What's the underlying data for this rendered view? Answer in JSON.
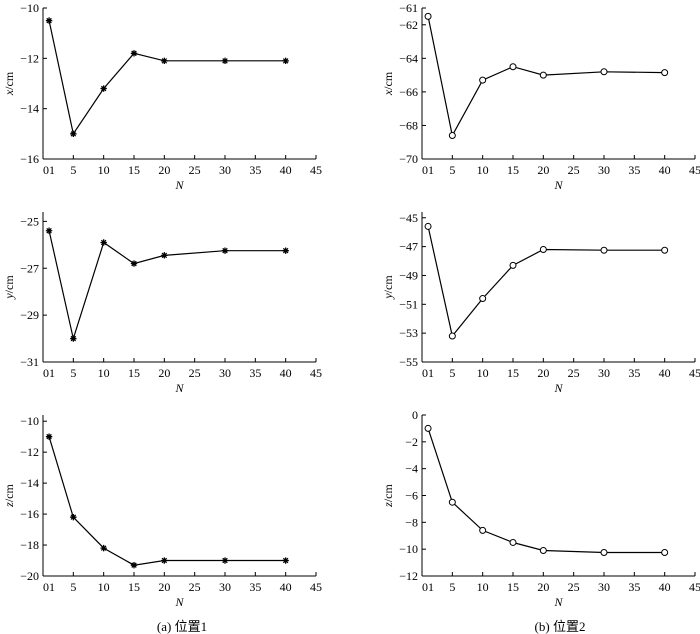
{
  "captions": {
    "left": "(a) 位置1",
    "right": "(b) 位置2"
  },
  "chart_data": [
    {
      "id": "a-x",
      "type": "line",
      "marker": "asterisk",
      "x": [
        1,
        5,
        10,
        15,
        20,
        30,
        40
      ],
      "y": [
        -10.5,
        -15.0,
        -13.2,
        -11.8,
        -12.1,
        -12.1,
        -12.1
      ],
      "ylim": [
        -16,
        -10
      ],
      "yticks": [
        -10,
        -12,
        -14,
        -16
      ],
      "xlim": [
        0,
        45
      ],
      "xticks": [
        5,
        10,
        15,
        20,
        25,
        30,
        35,
        40,
        45
      ],
      "xfirst_label": "01",
      "xlabel": "N",
      "ylabel_var": "x",
      "ylabel_unit": "/cm"
    },
    {
      "id": "b-x",
      "type": "line",
      "marker": "circle",
      "x": [
        1,
        5,
        10,
        15,
        20,
        30,
        40
      ],
      "y": [
        -61.5,
        -68.6,
        -65.3,
        -64.5,
        -65.0,
        -64.8,
        -64.85
      ],
      "ylim": [
        -70,
        -61
      ],
      "yticks": [
        -61,
        -62,
        -64,
        -66,
        -68,
        -70
      ],
      "xlim": [
        0,
        45
      ],
      "xticks": [
        5,
        10,
        15,
        20,
        25,
        30,
        35,
        40,
        45
      ],
      "xfirst_label": "01",
      "xlabel": "N",
      "ylabel_var": "x",
      "ylabel_unit": "/cm"
    },
    {
      "id": "a-y",
      "type": "line",
      "marker": "asterisk",
      "x": [
        1,
        5,
        10,
        15,
        20,
        30,
        40
      ],
      "y": [
        -25.4,
        -30.0,
        -25.9,
        -26.8,
        -26.45,
        -26.25,
        -26.25
      ],
      "ylim": [
        -31,
        -24.6
      ],
      "yticks": [
        -25,
        -27,
        -29,
        -31
      ],
      "xlim": [
        0,
        45
      ],
      "xticks": [
        5,
        10,
        15,
        20,
        25,
        30,
        35,
        40,
        45
      ],
      "xfirst_label": "01",
      "xlabel": "N",
      "ylabel_var": "y",
      "ylabel_unit": "/cm"
    },
    {
      "id": "b-y",
      "type": "line",
      "marker": "circle",
      "x": [
        1,
        5,
        10,
        15,
        20,
        30,
        40
      ],
      "y": [
        -45.6,
        -53.2,
        -50.6,
        -48.3,
        -47.2,
        -47.25,
        -47.25
      ],
      "ylim": [
        -55,
        -44.6
      ],
      "yticks": [
        -45,
        -47,
        -49,
        -51,
        -53,
        -55
      ],
      "xlim": [
        0,
        45
      ],
      "xticks": [
        5,
        10,
        15,
        20,
        25,
        30,
        35,
        40,
        45
      ],
      "xfirst_label": "01",
      "xlabel": "N",
      "ylabel_var": "y",
      "ylabel_unit": "/cm"
    },
    {
      "id": "a-z",
      "type": "line",
      "marker": "asterisk",
      "x": [
        1,
        5,
        10,
        15,
        20,
        30,
        40
      ],
      "y": [
        -11.0,
        -16.2,
        -18.2,
        -19.3,
        -19.0,
        -19.0,
        -19.0
      ],
      "ylim": [
        -20,
        -9.6
      ],
      "yticks": [
        -10,
        -12,
        -14,
        -16,
        -18,
        -20
      ],
      "xlim": [
        0,
        45
      ],
      "xticks": [
        5,
        10,
        15,
        20,
        25,
        30,
        35,
        40,
        45
      ],
      "xfirst_label": "01",
      "xlabel": "N",
      "ylabel_var": "z",
      "ylabel_unit": "/cm"
    },
    {
      "id": "b-z",
      "type": "line",
      "marker": "circle",
      "x": [
        1,
        5,
        10,
        15,
        20,
        30,
        40
      ],
      "y": [
        -1.0,
        -6.5,
        -8.6,
        -9.5,
        -10.1,
        -10.25,
        -10.25
      ],
      "ylim": [
        -12,
        0
      ],
      "yticks": [
        0,
        -2,
        -4,
        -6,
        -8,
        -10,
        -12
      ],
      "xlim": [
        0,
        45
      ],
      "xticks": [
        5,
        10,
        15,
        20,
        25,
        30,
        35,
        40,
        45
      ],
      "xfirst_label": "01",
      "xlabel": "N",
      "ylabel_var": "z",
      "ylabel_unit": "/cm"
    }
  ]
}
